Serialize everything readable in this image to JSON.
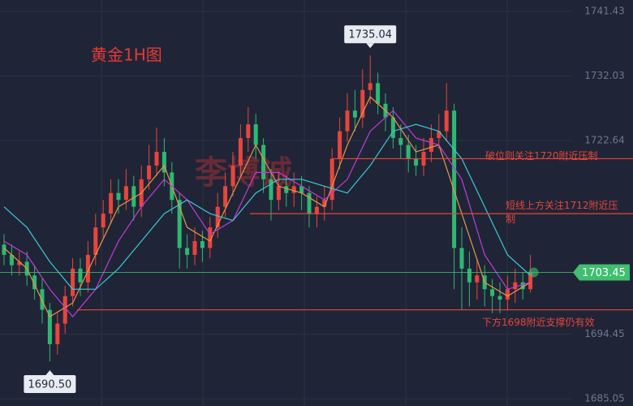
{
  "chart_data": {
    "type": "candlestick",
    "title": "黄金1H图",
    "watermark": "李博诚",
    "ylim": [
      1684.0,
      1743.1
    ],
    "yticks": [
      {
        "value": 1741.43,
        "label": "1741.43"
      },
      {
        "value": 1732.03,
        "label": "1732.03"
      },
      {
        "value": 1722.64,
        "label": "1722.64"
      },
      {
        "value": 1694.45,
        "label": "1694.45"
      },
      {
        "value": 1685.05,
        "label": "1685.05"
      }
    ],
    "grid": true,
    "up_color": "#e8453c",
    "down_color": "#2eb872",
    "open": [
      1707.5,
      1706,
      1704.5,
      1705,
      1703,
      1701,
      1698,
      1693,
      1696,
      1700,
      1704,
      1702,
      1706,
      1710,
      1712,
      1715,
      1714,
      1716,
      1713,
      1717,
      1719,
      1721,
      1718,
      1714,
      1707,
      1706,
      1708,
      1707,
      1710,
      1713,
      1716,
      1719,
      1723,
      1725,
      1722,
      1717,
      1714,
      1716,
      1715,
      1716,
      1715,
      1712,
      1713,
      1714,
      1720,
      1724,
      1727,
      1726,
      1730,
      1731,
      1728,
      1726,
      1723,
      1722,
      1720,
      1719,
      1721,
      1723,
      1724,
      1727,
      1707,
      1704,
      1702,
      1703,
      1701,
      1700,
      1699.5,
      1701,
      1702,
      1701
    ],
    "high": [
      1709,
      1707.5,
      1706.5,
      1706.5,
      1704.5,
      1702.5,
      1699,
      1697.5,
      1701.5,
      1705.5,
      1705.5,
      1708,
      1712,
      1714,
      1717,
      1717,
      1718.5,
      1717.5,
      1719,
      1722,
      1724.5,
      1723,
      1719.5,
      1715,
      1709,
      1710,
      1709.5,
      1711.5,
      1715,
      1718,
      1721,
      1725,
      1727.5,
      1726.5,
      1723,
      1718.5,
      1718,
      1717.5,
      1718,
      1717.5,
      1716,
      1714.5,
      1716,
      1721.5,
      1726,
      1729.5,
      1730,
      1733,
      1735.04,
      1732.5,
      1729.5,
      1727.5,
      1725,
      1723.5,
      1722,
      1723,
      1725,
      1726.5,
      1731,
      1728,
      1710,
      1706.5,
      1705.5,
      1704.5,
      1702.5,
      1702,
      1703,
      1704,
      1703.5,
      1706
    ],
    "low": [
      1704.5,
      1703,
      1703,
      1701.5,
      1699.5,
      1696,
      1690.5,
      1691.5,
      1694.5,
      1698.5,
      1700,
      1700.5,
      1704.5,
      1708.5,
      1710.5,
      1712,
      1712.5,
      1711,
      1711.5,
      1715.5,
      1717.5,
      1716,
      1712,
      1704,
      1704,
      1704.5,
      1705,
      1705.5,
      1708.5,
      1711.5,
      1714.5,
      1717.5,
      1721,
      1720,
      1715,
      1711,
      1712.5,
      1713,
      1713,
      1712.5,
      1710,
      1710,
      1711,
      1712.5,
      1718.5,
      1722.5,
      1724,
      1724.5,
      1728,
      1726.5,
      1724,
      1721.5,
      1720,
      1718,
      1717.5,
      1717.5,
      1719.5,
      1721.5,
      1722.5,
      1701,
      1698,
      1698.5,
      1699.5,
      1698.5,
      1697.5,
      1697.5,
      1698,
      1699,
      1699.5,
      1700.5
    ],
    "close": [
      1706,
      1704.5,
      1705,
      1703,
      1701,
      1698,
      1693,
      1696,
      1700,
      1704,
      1702,
      1706,
      1710,
      1712,
      1715,
      1714,
      1716,
      1713,
      1717,
      1719,
      1721,
      1718,
      1714,
      1707,
      1706,
      1708,
      1707,
      1710,
      1713,
      1716,
      1719,
      1723,
      1725,
      1722,
      1717,
      1714,
      1716,
      1715,
      1716,
      1715,
      1712,
      1713,
      1714,
      1720,
      1724,
      1727,
      1726,
      1730,
      1731,
      1728,
      1726,
      1723,
      1722,
      1720,
      1719,
      1721,
      1723,
      1724,
      1727,
      1707,
      1704,
      1702,
      1703,
      1701,
      1700,
      1699.5,
      1701,
      1702,
      1701,
      1703.45
    ],
    "lines": [
      {
        "color": "#e8954a",
        "x": [
          0,
          3,
          6,
          9,
          12,
          15,
          18,
          21,
          24,
          27,
          30,
          33,
          36,
          39,
          42,
          45,
          48,
          51,
          54,
          57,
          60,
          63,
          66,
          69
        ],
        "values": [
          1707,
          1704,
          1697,
          1699,
          1706,
          1713,
          1715,
          1719,
          1710,
          1708,
          1715,
          1722,
          1716,
          1715,
          1713,
          1722,
          1729,
          1726,
          1721,
          1722,
          1712,
          1702,
          1700,
          1702
        ]
      },
      {
        "color": "#c13bd6",
        "x": [
          0,
          3,
          6,
          9,
          12,
          15,
          18,
          21,
          24,
          27,
          30,
          33,
          36,
          39,
          42,
          45,
          48,
          51,
          54,
          57,
          60,
          63,
          66,
          69
        ],
        "values": [
          1708,
          1706,
          1701,
          1697,
          1701,
          1708,
          1713,
          1717,
          1714,
          1709,
          1711,
          1718,
          1718,
          1716,
          1714,
          1717,
          1724,
          1727,
          1723,
          1722,
          1717,
          1706,
          1701,
          1702
        ]
      },
      {
        "color": "#3fc6d8",
        "x": [
          0,
          3,
          6,
          9,
          12,
          15,
          18,
          21,
          24,
          27,
          30,
          33,
          36,
          39,
          42,
          45,
          48,
          51,
          54,
          57,
          60,
          63,
          66,
          69
        ],
        "values": [
          1713,
          1710,
          1705,
          1701,
          1701,
          1704,
          1708,
          1712,
          1714,
          1712,
          1711,
          1715,
          1717,
          1717,
          1716,
          1715,
          1719,
          1724,
          1725,
          1724,
          1720,
          1713,
          1706,
          1703
        ]
      }
    ],
    "levels": [
      {
        "value": 1720,
        "label": "破位则关注1720附近压制"
      },
      {
        "value": 1712,
        "label": "短线上方关注1712附近压制"
      },
      {
        "value": 1698,
        "label": "下方1698附近支撑仍有效"
      }
    ],
    "price_labels": [
      {
        "value": 1735.04,
        "label": "1735.04"
      },
      {
        "value": 1690.5,
        "label": "1690.50"
      }
    ],
    "last_price": {
      "value": 1703.45,
      "label": "1703.45",
      "color": "#3fbf6f"
    }
  }
}
